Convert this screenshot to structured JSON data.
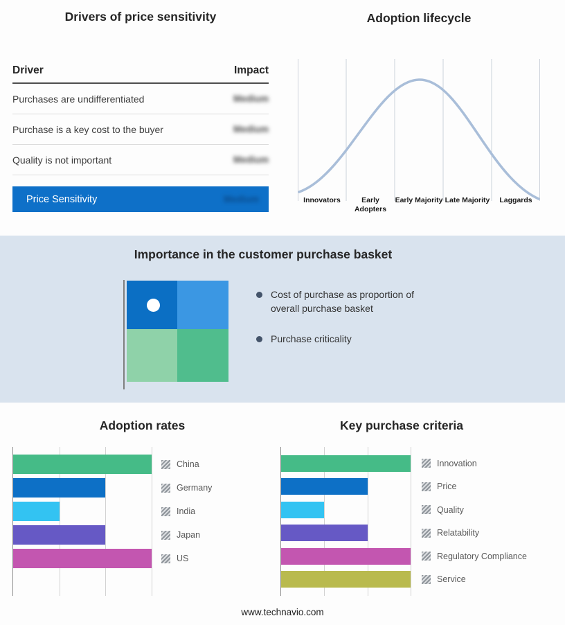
{
  "drivers": {
    "title": "Drivers of price sensitivity",
    "header": {
      "driver": "Driver",
      "impact": "Impact"
    },
    "rows": [
      {
        "driver": "Purchases are undifferentiated",
        "impact": "Medium"
      },
      {
        "driver": "Purchase is a key cost to the buyer",
        "impact": "Medium"
      },
      {
        "driver": "Quality is not important",
        "impact": "Medium"
      }
    ],
    "highlight": {
      "driver": "Price Sensitivity",
      "impact": "Medium"
    },
    "highlight_color": "#0e70c8"
  },
  "lifecycle": {
    "title": "Adoption lifecycle",
    "stages": [
      "Innovators",
      "Early Adopters",
      "Early Majority",
      "Late Majority",
      "Laggards"
    ],
    "curve_color": "#a9bed9"
  },
  "basket": {
    "title": "Importance in the customer purchase basket",
    "bullets": [
      "Cost of purchase as proportion of overall purchase basket",
      "Purchase criticality"
    ],
    "band_color": "#d9e3ee",
    "quadrant_colors": {
      "top_left": "#0b6fc4",
      "top_right": "#3b97e3",
      "bottom_left": "#8fd2a9",
      "bottom_right": "#50bd8d"
    }
  },
  "chart_data": [
    {
      "type": "bar",
      "orientation": "horizontal",
      "title": "Adoption rates",
      "categories": [
        "China",
        "Germany",
        "India",
        "Japan",
        "US"
      ],
      "values": [
        3,
        2,
        1,
        2,
        3
      ],
      "xmax": 3,
      "xlabel": "",
      "ylabel": "",
      "grid": true,
      "legend_position": "right",
      "colors": [
        "#45bb87",
        "#0d70c6",
        "#33c3f2",
        "#6659c5",
        "#c356b0"
      ]
    },
    {
      "type": "bar",
      "orientation": "horizontal",
      "title": "Key purchase criteria",
      "categories": [
        "Innovation",
        "Price",
        "Quality",
        "Relatability",
        "Regulatory Compliance",
        "Service"
      ],
      "values": [
        3,
        2,
        1,
        2,
        3,
        3
      ],
      "xmax": 3,
      "xlabel": "",
      "ylabel": "",
      "grid": true,
      "legend_position": "right",
      "colors": [
        "#45bb87",
        "#0d70c6",
        "#33c3f2",
        "#6659c5",
        "#c356b0",
        "#b9ba4e"
      ]
    }
  ],
  "footer": "www.technavio.com"
}
